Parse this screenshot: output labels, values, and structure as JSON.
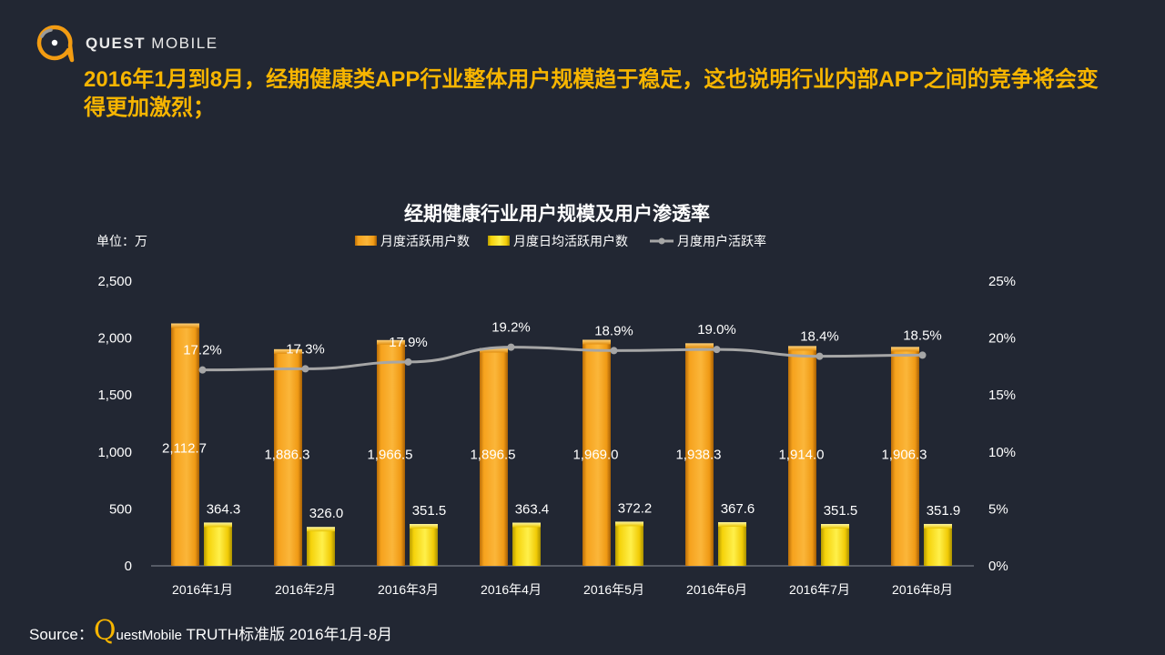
{
  "brand": {
    "name_bold": "QUEST",
    "name_light": "MOBILE",
    "accent": "#f7b500",
    "background": "#222733"
  },
  "headline": "2016年1月到8月，经期健康类APP行业整体用户规模趋于稳定，这也说明行业内部APP之间的竞争将会变得更加激烈；",
  "source": {
    "prefix": "Source：",
    "brand_q": "Q",
    "brand_rest": "uestMobile",
    "rest": " TRUTH标准版 2016年1月-8月"
  },
  "chart_data": {
    "type": "bar",
    "title": "经期健康行业用户规模及用户渗透率",
    "unit_label": "单位：万",
    "categories": [
      "2016年1月",
      "2016年2月",
      "2016年3月",
      "2016年4月",
      "2016年5月",
      "2016年6月",
      "2016年7月",
      "2016年8月"
    ],
    "ylim": [
      0,
      2500
    ],
    "yticks": [
      "0",
      "500",
      "1,000",
      "1,500",
      "2,000",
      "2,500"
    ],
    "ytick_values": [
      0,
      500,
      1000,
      1500,
      2000,
      2500
    ],
    "y2lim": [
      0,
      25
    ],
    "y2ticks": [
      "0%",
      "5%",
      "10%",
      "15%",
      "20%",
      "25%"
    ],
    "y2tick_values": [
      0,
      5,
      10,
      15,
      20,
      25
    ],
    "legend_position": "top-center",
    "series": [
      {
        "name": "月度活跃用户数",
        "kind": "bar",
        "axis": "left",
        "color": "#f5a21c",
        "values": [
          2112.7,
          1886.3,
          1966.5,
          1896.5,
          1969.0,
          1938.3,
          1914.0,
          1906.3
        ],
        "labels": [
          "2,112.7",
          "1,886.3",
          "1,966.5",
          "1,896.5",
          "1,969.0",
          "1,938.3",
          "1,914.0",
          "1,906.3"
        ]
      },
      {
        "name": "月度日均活跃用户数",
        "kind": "bar",
        "axis": "left",
        "color": "#f8d60c",
        "values": [
          364.3,
          326.0,
          351.5,
          363.4,
          372.2,
          367.6,
          351.5,
          351.9
        ],
        "labels": [
          "364.3",
          "326.0",
          "351.5",
          "363.4",
          "372.2",
          "367.6",
          "351.5",
          "351.9"
        ]
      },
      {
        "name": "月度用户活跃率",
        "kind": "line",
        "axis": "right",
        "color": "#a6a6a6",
        "values": [
          17.2,
          17.3,
          17.9,
          19.2,
          18.9,
          19.0,
          18.4,
          18.5
        ],
        "labels": [
          "17.2%",
          "17.3%",
          "17.9%",
          "19.2%",
          "18.9%",
          "19.0%",
          "18.4%",
          "18.5%"
        ]
      }
    ]
  }
}
